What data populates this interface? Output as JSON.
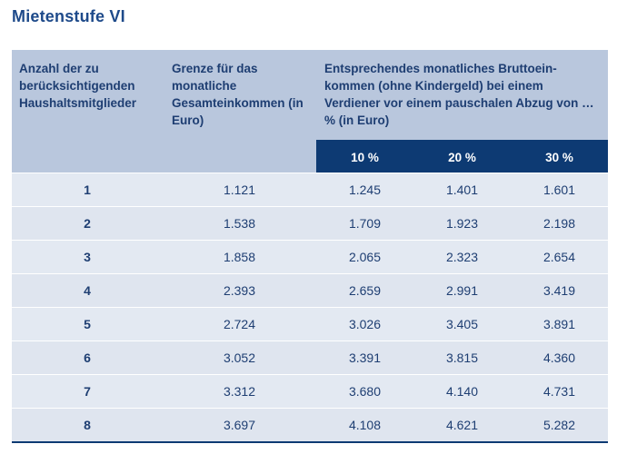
{
  "title": "Mietenstufe VI",
  "header": {
    "col_members": "Anzahl der zu berücksichtigenden Haushaltsmitglieder",
    "col_limit": "Grenze für das monatliche Gesamteinkommen (in Euro)",
    "col_gross": "Entsprechendes monatliches Bruttoein-kommen (ohne Kindergeld) bei einem Verdiener vor einem pauschalen Abzug von … % (in Euro)",
    "pct_10": "10 %",
    "pct_20": "20 %",
    "pct_30": "30 %"
  },
  "rows": [
    {
      "members": "1",
      "limit": "1.121",
      "p10": "1.245",
      "p20": "1.401",
      "p30": "1.601"
    },
    {
      "members": "2",
      "limit": "1.538",
      "p10": "1.709",
      "p20": "1.923",
      "p30": "2.198"
    },
    {
      "members": "3",
      "limit": "1.858",
      "p10": "2.065",
      "p20": "2.323",
      "p30": "2.654"
    },
    {
      "members": "4",
      "limit": "2.393",
      "p10": "2.659",
      "p20": "2.991",
      "p30": "3.419"
    },
    {
      "members": "5",
      "limit": "2.724",
      "p10": "3.026",
      "p20": "3.405",
      "p30": "3.891"
    },
    {
      "members": "6",
      "limit": "3.052",
      "p10": "3.391",
      "p20": "3.815",
      "p30": "4.360"
    },
    {
      "members": "7",
      "limit": "3.312",
      "p10": "3.680",
      "p20": "4.140",
      "p30": "4.731"
    },
    {
      "members": "8",
      "limit": "3.697",
      "p10": "4.108",
      "p20": "4.621",
      "p30": "5.282"
    }
  ]
}
